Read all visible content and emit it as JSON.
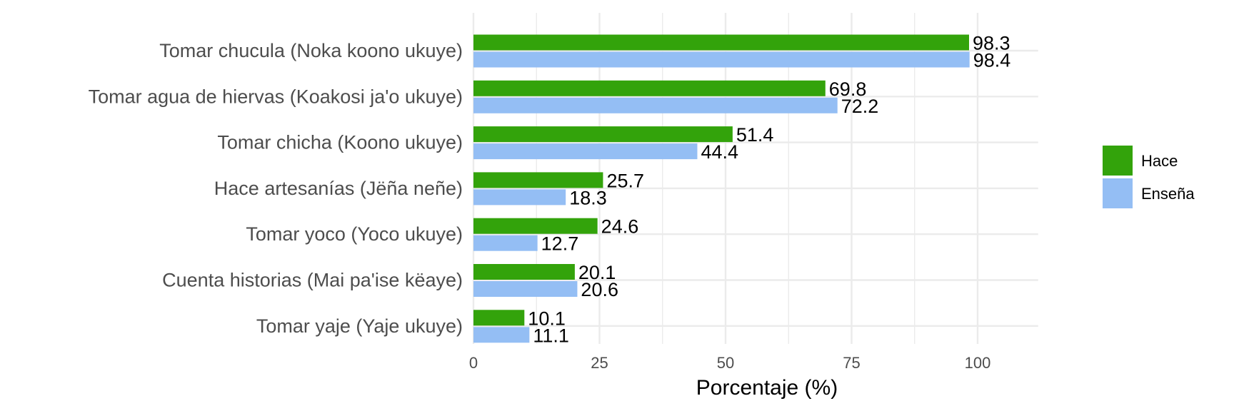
{
  "chart_data": {
    "type": "bar",
    "orientation": "horizontal",
    "categories": [
      "Tomar chucula (Noka koono ukuye)",
      "Tomar agua de hiervas (Koakosi ja'o ukuye)",
      "Tomar chicha (Koono ukuye)",
      "Hace artesanías (Jëña neñe)",
      "Tomar yoco (Yoco ukuye)",
      "Cuenta historias (Mai pa'ise këaye)",
      "Tomar yaje (Yaje ukuye)"
    ],
    "series": [
      {
        "name": "Hace",
        "color": "#33a30b",
        "values": [
          98.3,
          69.8,
          51.4,
          25.7,
          24.6,
          20.1,
          10.1
        ]
      },
      {
        "name": "Enseña",
        "color": "#94bef4",
        "values": [
          98.4,
          72.2,
          44.4,
          18.3,
          12.7,
          20.6,
          11.1
        ]
      }
    ],
    "xlabel": "Porcentaje (%)",
    "ylabel": "",
    "xlim": [
      0,
      112
    ],
    "xticks": [
      0,
      25,
      50,
      75,
      100
    ],
    "grid": true,
    "legend_position": "right"
  }
}
